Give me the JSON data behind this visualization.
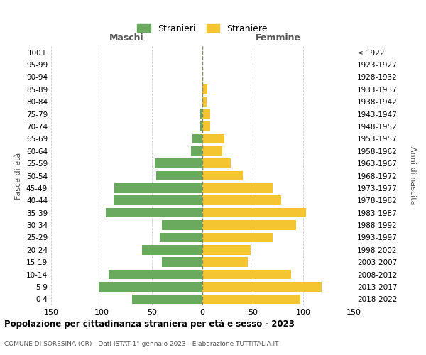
{
  "age_groups": [
    "0-4",
    "5-9",
    "10-14",
    "15-19",
    "20-24",
    "25-29",
    "30-34",
    "35-39",
    "40-44",
    "45-49",
    "50-54",
    "55-59",
    "60-64",
    "65-69",
    "70-74",
    "75-79",
    "80-84",
    "85-89",
    "90-94",
    "95-99",
    "100+"
  ],
  "birth_years": [
    "2018-2022",
    "2013-2017",
    "2008-2012",
    "2003-2007",
    "1998-2002",
    "1993-1997",
    "1988-1992",
    "1983-1987",
    "1978-1982",
    "1973-1977",
    "1968-1972",
    "1963-1967",
    "1958-1962",
    "1953-1957",
    "1948-1952",
    "1943-1947",
    "1938-1942",
    "1933-1937",
    "1928-1932",
    "1923-1927",
    "≤ 1922"
  ],
  "males": [
    70,
    103,
    93,
    40,
    60,
    42,
    40,
    96,
    88,
    87,
    46,
    47,
    11,
    10,
    2,
    2,
    0,
    0,
    0,
    0,
    0
  ],
  "females": [
    97,
    118,
    88,
    45,
    48,
    70,
    93,
    103,
    78,
    70,
    40,
    28,
    20,
    22,
    8,
    8,
    4,
    5,
    0,
    0,
    0
  ],
  "male_color": "#6aaa5f",
  "female_color": "#f5c431",
  "background_color": "#ffffff",
  "grid_color": "#cccccc",
  "title": "Popolazione per cittadinanza straniera per età e sesso - 2023",
  "subtitle": "COMUNE DI SORESINA (CR) - Dati ISTAT 1° gennaio 2023 - Elaborazione TUTTITALIA.IT",
  "legend_male": "Stranieri",
  "legend_female": "Straniere",
  "xlabel_left": "Maschi",
  "xlabel_right": "Femmine",
  "ylabel_left": "Fasce di età",
  "ylabel_right": "Anni di nascita",
  "xlim": 150
}
